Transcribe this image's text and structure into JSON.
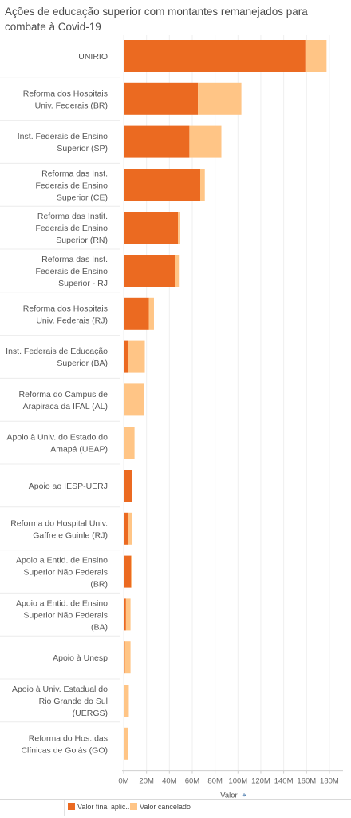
{
  "title": "Ações de educação superior com montantes remanejados para combate à Covid-19",
  "chart_data": {
    "type": "bar",
    "orientation": "horizontal",
    "stacked": true,
    "categories": [
      [
        "UNIRIO"
      ],
      [
        "Reforma dos Hospitais",
        "Univ. Federais (BR)"
      ],
      [
        "Inst. Federais de Ensino",
        "Superior (SP)"
      ],
      [
        "Reforma das Inst.",
        "Federais de Ensino",
        "Superior (CE)"
      ],
      [
        "Reforma das Instit.",
        "Federais de Ensino",
        "Superior (RN)"
      ],
      [
        "Reforma das Inst.",
        "Federais de Ensino",
        "Superior - RJ"
      ],
      [
        "Reforma dos Hospitais",
        "Univ. Federais (RJ)"
      ],
      [
        "Inst. Federais de Educação",
        "Superior (BA)"
      ],
      [
        "Reforma do Campus de",
        "Arapiraca da IFAL (AL)"
      ],
      [
        "Apoio à Univ. do Estado do",
        "Amapá (UEAP)"
      ],
      [
        "Apoio ao IESP-UERJ"
      ],
      [
        "Reforma do Hospital Univ.",
        "Gaffre e Guinle (RJ)"
      ],
      [
        "Apoio a Entid. de Ensino",
        "Superior Não Federais",
        "(BR)"
      ],
      [
        "Apoio a Entid. de Ensino",
        "Superior Não Federais",
        "(BA)"
      ],
      [
        "Apoio à Unesp"
      ],
      [
        "Apoio à Univ. Estadual do",
        "Rio Grande do Sul",
        "(UERGS)"
      ],
      [
        "Reforma do Hos. das",
        "Clínicas de Goiás (GO)"
      ]
    ],
    "series": [
      {
        "name": "Valor final aplic..",
        "color": "#EB6A21",
        "values": [
          159,
          65,
          57.5,
          67,
          47.5,
          45,
          22,
          3.5,
          0,
          0,
          7,
          4,
          6.5,
          2,
          1,
          0,
          0
        ]
      },
      {
        "name": "Valor cancelado",
        "color": "#FFC586",
        "values": [
          18.5,
          38,
          28,
          4,
          2,
          4,
          4.5,
          15,
          18,
          9.5,
          0.5,
          3,
          1,
          4,
          5,
          4.5,
          4
        ]
      }
    ],
    "xlabel": "Valor",
    "xlim": [
      0,
      190
    ],
    "ticks": [
      0,
      20,
      40,
      60,
      80,
      100,
      120,
      140,
      160,
      180
    ],
    "tick_labels": [
      "0M",
      "20M",
      "40M",
      "60M",
      "80M",
      "100M",
      "120M",
      "140M",
      "160M",
      "180M"
    ],
    "grid": true,
    "legend_position": "bottom"
  }
}
